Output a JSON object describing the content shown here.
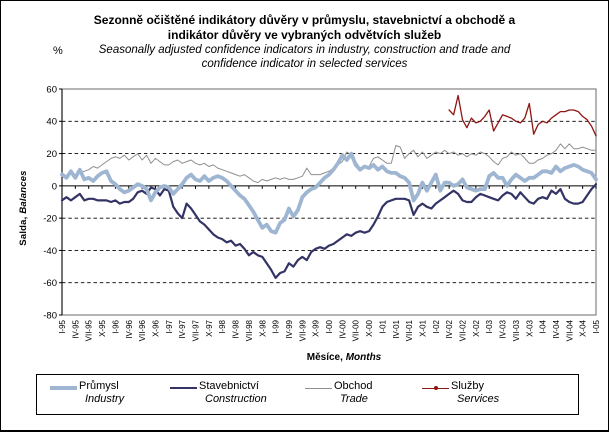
{
  "title": {
    "line1": "Sezonně očištěné indikátory důvěry v průmyslu, stavebnictví a obchodě a",
    "line2": "indikátor důvěry ve vybraných odvětvích služeb"
  },
  "subtitle": {
    "line1": "Seasonally adjusted confidence indicators in industry, construction and trade and",
    "line2": "confidence indicator in selected services"
  },
  "y_axis": {
    "unit_label": "%",
    "title_cs": "Salda,",
    "title_en": "Balances",
    "ticks": [
      60,
      40,
      20,
      0,
      -20,
      -40,
      -60,
      -80
    ]
  },
  "x_axis": {
    "title_cs": "Měsíce,",
    "title_en": "Months"
  },
  "legend": {
    "items": [
      {
        "cs": "Průmysl",
        "en": "Industry",
        "color": "#9FB6D2",
        "line_weight": 4,
        "marker": false
      },
      {
        "cs": "Stavebnictví",
        "en": "Construction",
        "color": "#333366",
        "line_weight": 2,
        "marker": false
      },
      {
        "cs": "Obchod",
        "en": "Trade",
        "color": "#8F8F8F",
        "line_weight": 1,
        "marker": false
      },
      {
        "cs": "Služby",
        "en": "Services",
        "color": "#8E1612",
        "line_weight": 1,
        "marker": true
      }
    ]
  },
  "chart_data": {
    "type": "line",
    "x_unit": "month",
    "x_range": [
      "1995-01",
      "2005-01"
    ],
    "ylim": [
      -80,
      60
    ],
    "grid": "horizontal-dashed",
    "y_gridlines_dashed": [
      40,
      20,
      -20,
      -40,
      -60
    ],
    "x_tick_labels": [
      "I-95",
      "IV-95",
      "VII-95",
      "X-95",
      "I-96",
      "IV-96",
      "VII-96",
      "X-96",
      "I-97",
      "IV-97",
      "VII-97",
      "X-97",
      "I-98",
      "IV-98",
      "VII-98",
      "X-98",
      "I-99",
      "IV-99",
      "VII-99",
      "X-99",
      "I-00",
      "IV-00",
      "VII-00",
      "X-00",
      "I-01",
      "IV-01",
      "VII-01",
      "X-01",
      "I-02",
      "IV-02",
      "VII-02",
      "X-02",
      "I-03",
      "IV-03",
      "VII-03",
      "X-03",
      "I-04",
      "IV-04",
      "VII-04",
      "X-04",
      "I-05"
    ],
    "series": [
      {
        "name_cs": "Obchod",
        "name_en": "Trade",
        "color": "#8F8F8F",
        "width": 1,
        "start_index": 0,
        "values": [
          8,
          6,
          9,
          6,
          8,
          9,
          10,
          12,
          11,
          13,
          15,
          17,
          18,
          17,
          19,
          16,
          18,
          20,
          16,
          19,
          14,
          17,
          15,
          13,
          13,
          15,
          16,
          14,
          15,
          16,
          14,
          13,
          14,
          12,
          13,
          11,
          10,
          9,
          8,
          7,
          6,
          7,
          5,
          3,
          2,
          4,
          3,
          4,
          5,
          4,
          5,
          4,
          4,
          5,
          6,
          11,
          7,
          7,
          7,
          8,
          9,
          11,
          13,
          15,
          21,
          19,
          15,
          11,
          12,
          12,
          17,
          18,
          16,
          14,
          14,
          25,
          24,
          17,
          20,
          22,
          18,
          21,
          17,
          19,
          21,
          20,
          22,
          20,
          21,
          19,
          20,
          18,
          20,
          19,
          21,
          20,
          18,
          15,
          13,
          17,
          18,
          21,
          19,
          20,
          17,
          14,
          14,
          16,
          17,
          19,
          20,
          22,
          26,
          23,
          26,
          23,
          23,
          24,
          23,
          22,
          22
        ]
      },
      {
        "name_cs": "Stavebnictví",
        "name_en": "Construction",
        "color": "#333366",
        "width": 2.2,
        "start_index": 0,
        "values": [
          -9,
          -7,
          -9,
          -7,
          -5,
          -9,
          -8,
          -8,
          -9,
          -9,
          -9,
          -10,
          -9,
          -11,
          -10,
          -10,
          -8,
          -4,
          -3,
          -5,
          -1,
          -2,
          -6,
          -2,
          -3,
          -13,
          -17,
          -20,
          -11,
          -14,
          -18,
          -22,
          -24,
          -27,
          -30,
          -32,
          -33,
          -35,
          -34,
          -37,
          -36,
          -39,
          -43,
          -41,
          -43,
          -44,
          -48,
          -52,
          -57,
          -54,
          -53,
          -48,
          -50,
          -46,
          -44,
          -46,
          -41,
          -39,
          -38,
          -39,
          -37,
          -36,
          -34,
          -32,
          -30,
          -31,
          -29,
          -28,
          -29,
          -28,
          -24,
          -19,
          -13,
          -10,
          -9,
          -8,
          -8,
          -8,
          -9,
          -18,
          -13,
          -11,
          -13,
          -14,
          -11,
          -9,
          -7,
          -5,
          -3,
          -5,
          -9,
          -10,
          -10,
          -7,
          -5,
          -6,
          -7,
          -8,
          -9,
          -6,
          -4,
          -5,
          -8,
          -4,
          -7,
          -10,
          -11,
          -8,
          -7,
          -8,
          -3,
          -5,
          -2,
          -8,
          -10,
          -11,
          -11,
          -10,
          -6,
          -2,
          1
        ]
      },
      {
        "name_cs": "Průmysl",
        "name_en": "Industry",
        "color": "#9FB6D2",
        "width": 3.8,
        "start_index": 0,
        "values": [
          7,
          5,
          9,
          5,
          10,
          4,
          5,
          3,
          6,
          8,
          9,
          3,
          1,
          -2,
          -4,
          -3,
          -1,
          1,
          0,
          -2,
          -9,
          -4,
          -1,
          0,
          -1,
          -5,
          -2,
          1,
          5,
          7,
          4,
          3,
          6,
          3,
          5,
          6,
          5,
          3,
          0,
          -3,
          -6,
          -8,
          -12,
          -16,
          -21,
          -26,
          -24,
          -28,
          -29,
          -23,
          -21,
          -14,
          -19,
          -15,
          -7,
          -4,
          -2,
          -1,
          2,
          5,
          7,
          10,
          14,
          19,
          16,
          20,
          13,
          10,
          12,
          11,
          13,
          10,
          12,
          9,
          8,
          8,
          6,
          5,
          2,
          -9,
          -5,
          2,
          -3,
          2,
          7,
          -3,
          2,
          2,
          0,
          1,
          4,
          -1,
          -2,
          -3,
          -2,
          -2,
          6,
          8,
          5,
          5,
          0,
          4,
          7,
          5,
          3,
          5,
          5,
          7,
          9,
          9,
          8,
          12,
          9,
          11,
          12,
          13,
          12,
          10,
          9,
          8,
          4
        ]
      },
      {
        "name_cs": "Služby",
        "name_en": "Services",
        "color": "#8E1612",
        "width": 1.3,
        "start_index": 87,
        "values": [
          47,
          44,
          56,
          41,
          36,
          42,
          39,
          40,
          43,
          47,
          34,
          39,
          44,
          43,
          42,
          40,
          39,
          42,
          51,
          32,
          38,
          40,
          39,
          42,
          44,
          46,
          46,
          47,
          47,
          46,
          43,
          41,
          37,
          31
        ]
      }
    ]
  }
}
